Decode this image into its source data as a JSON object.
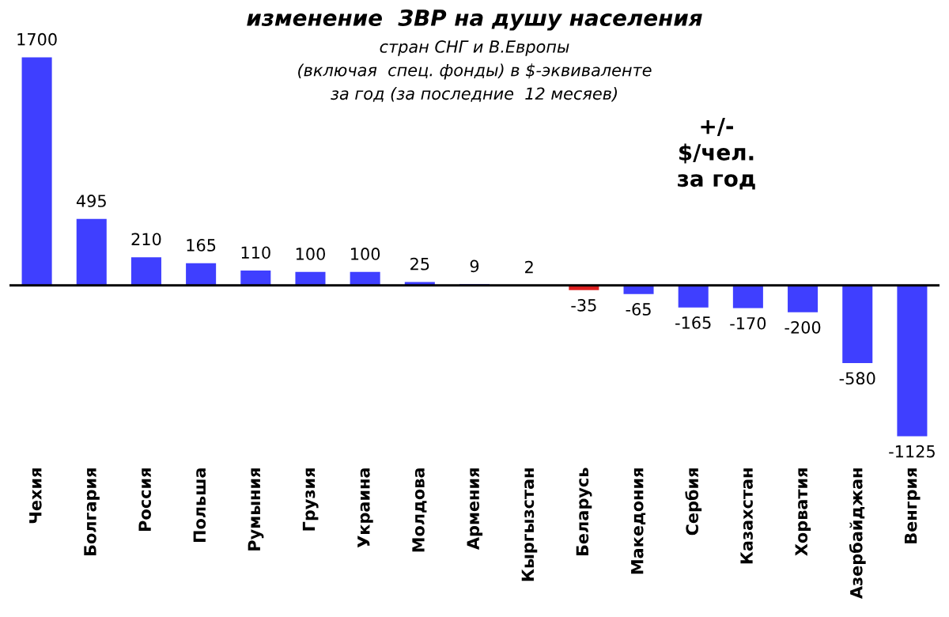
{
  "chart_data": {
    "type": "bar",
    "title": "изменение  ЗВР на душу населения",
    "subtitle": "стран СНГ и В.Европы\n(включая  спец. фонды) в $-эквиваленте\nза год (за последние  12 месяев)",
    "categories": [
      "Чехия",
      "Болгария",
      "Россия",
      "Польша",
      "Румыния",
      "Грузия",
      "Украина",
      "Молдова",
      "Армения",
      "Кыргызстан",
      "Беларусь",
      "Македония",
      "Сербия",
      "Казахстан",
      "Хорватия",
      "Азербайджан",
      "Венгрия"
    ],
    "values": [
      1700,
      495,
      210,
      165,
      110,
      100,
      100,
      25,
      9,
      2,
      -35,
      -65,
      -165,
      -170,
      -200,
      -580,
      -1125
    ],
    "colors": [
      "#3f3fff",
      "#3f3fff",
      "#3f3fff",
      "#3f3fff",
      "#3f3fff",
      "#3f3fff",
      "#3f3fff",
      "#3f3fff",
      "#3f3fff",
      "#3f3fff",
      "#e02020",
      "#3f3fff",
      "#3f3fff",
      "#3f3fff",
      "#3f3fff",
      "#3f3fff",
      "#3f3fff"
    ],
    "tick_labels": "x",
    "data_labels": true,
    "grid": false,
    "legend": false,
    "annotations": [
      "+/-\n$/чел.\nза год"
    ]
  }
}
